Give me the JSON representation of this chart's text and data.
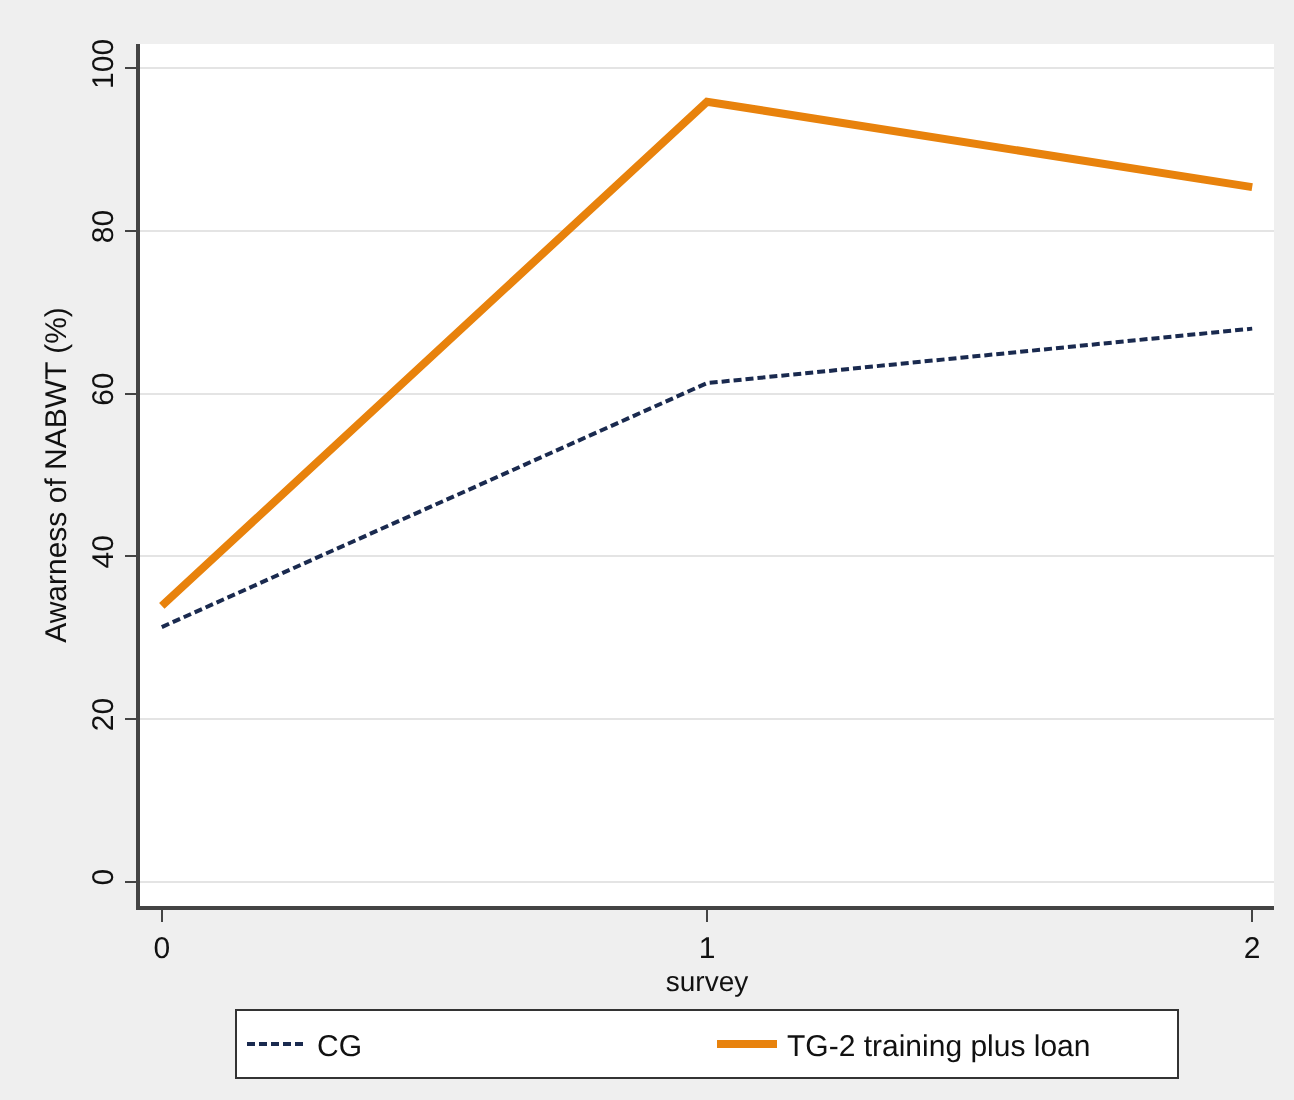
{
  "chart_data": {
    "type": "line",
    "xlabel": "survey",
    "ylabel": "Awarness of NABWT (%)",
    "x": [
      0,
      1,
      2
    ],
    "series": [
      {
        "name": "CG",
        "color": "#1a2a4f",
        "values": [
          31.3,
          61.3,
          68.0
        ],
        "line_style": "dashed"
      },
      {
        "name": "TG-2 training plus loan",
        "color": "#e8820c",
        "values": [
          33.9,
          95.9,
          85.4
        ],
        "line_style": "solid"
      }
    ],
    "xlim": [
      -0.04,
      2.04
    ],
    "xticks": [
      0,
      1,
      2
    ],
    "ylim": [
      -3,
      103
    ],
    "yticks": [
      0,
      20,
      40,
      60,
      80,
      100
    ],
    "grid": "y",
    "legend": "bottom",
    "marker": "none"
  }
}
